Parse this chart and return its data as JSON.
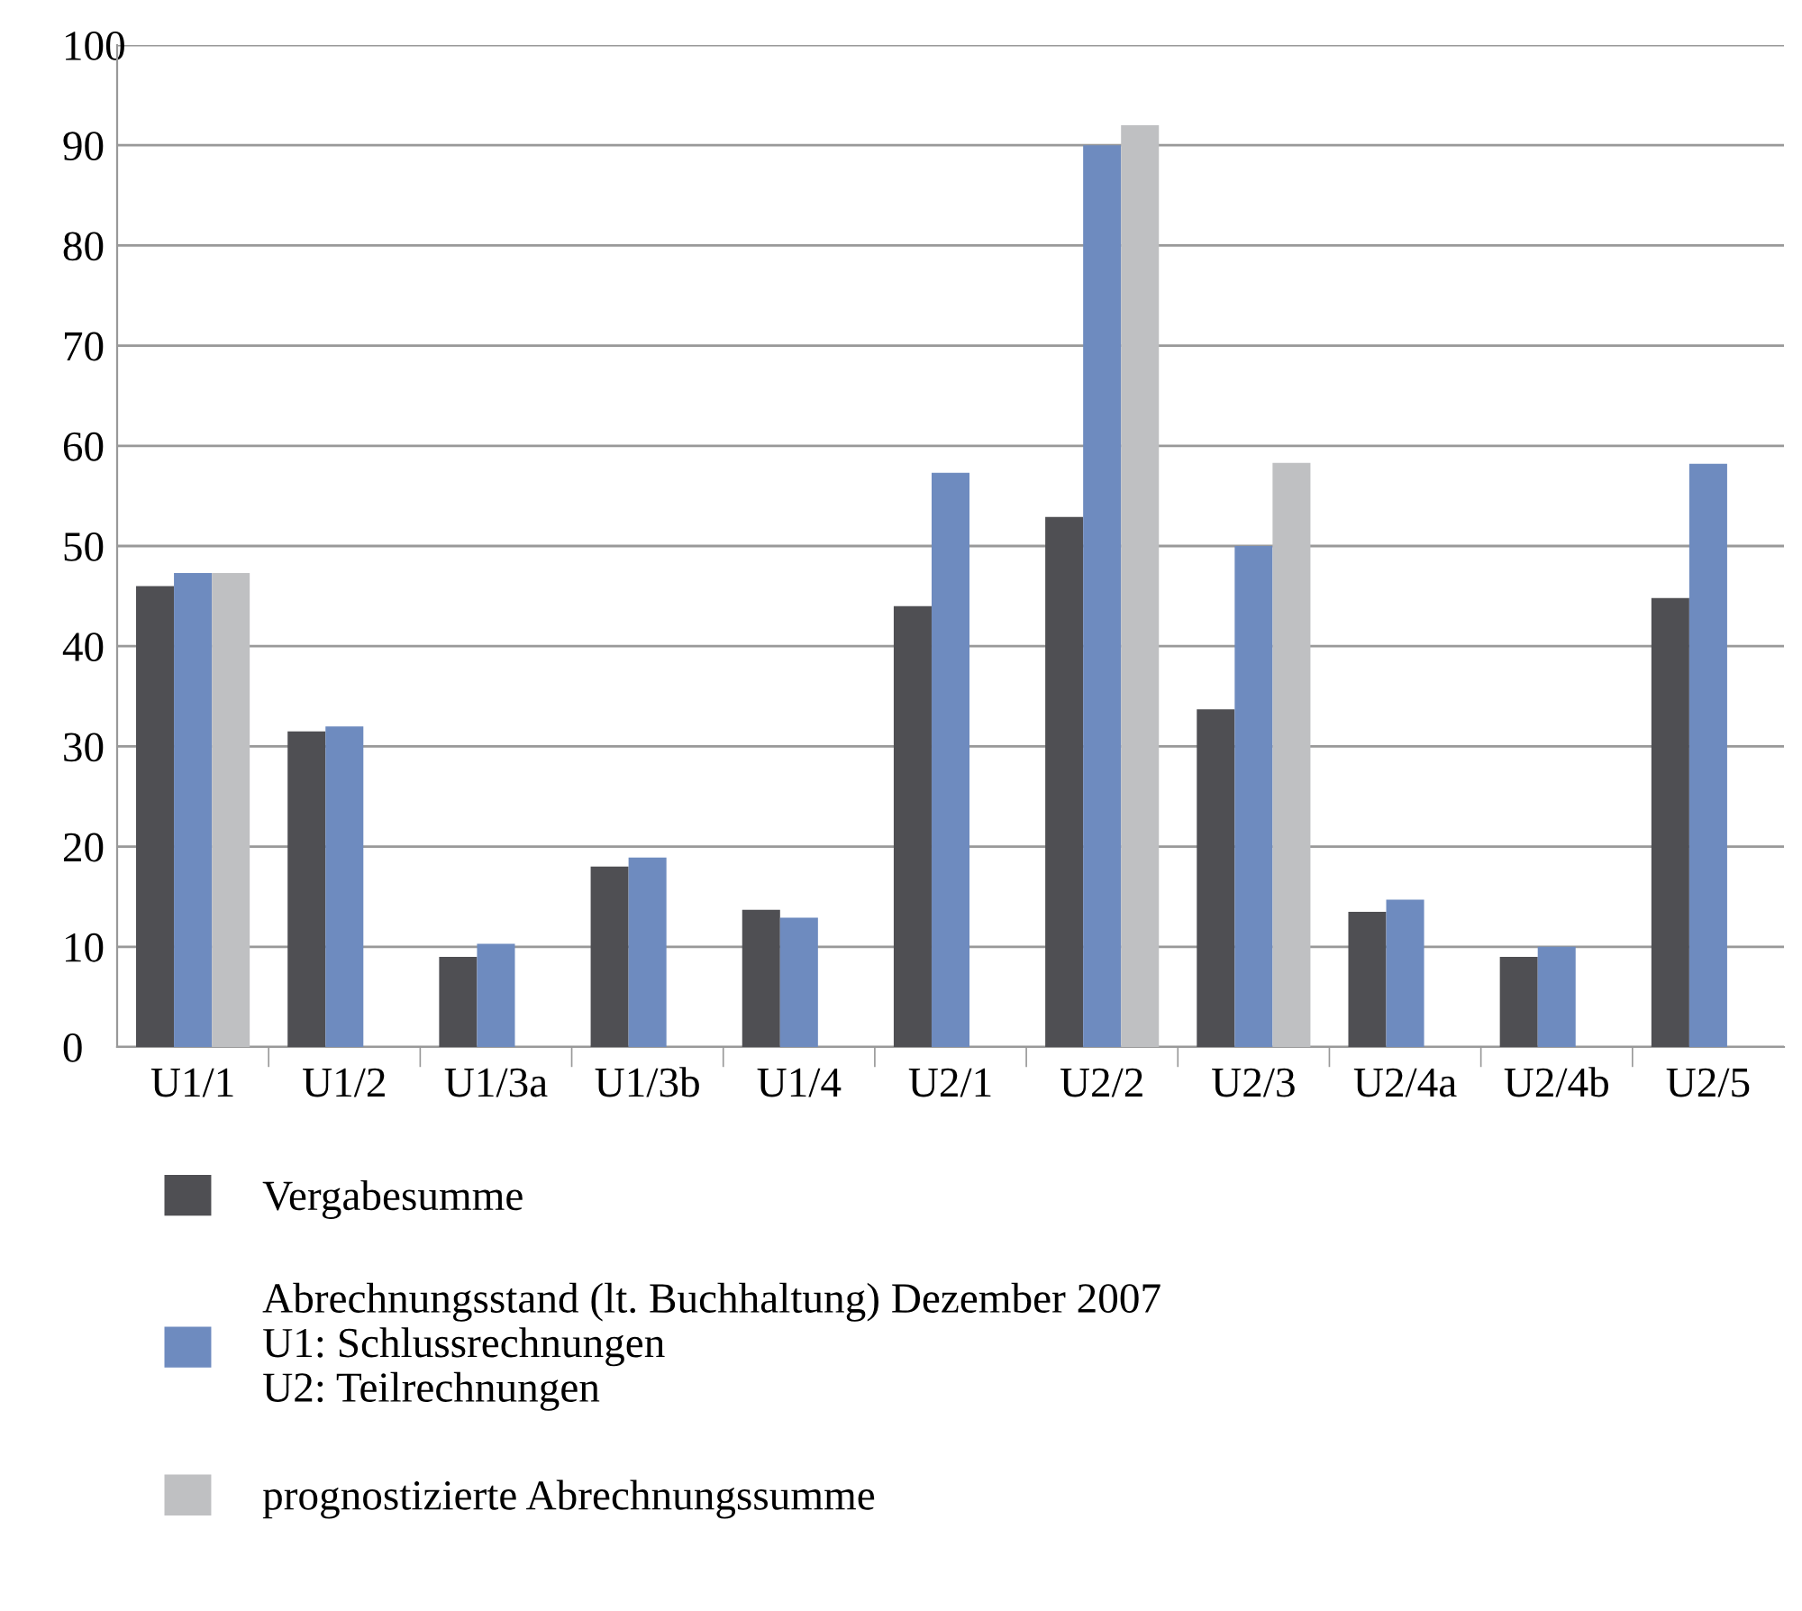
{
  "chart_data": {
    "type": "bar",
    "categories": [
      "U1/1",
      "U1/2",
      "U1/3a",
      "U1/3b",
      "U1/4",
      "U2/1",
      "U2/2",
      "U2/3",
      "U2/4a",
      "U2/4b",
      "U2/5"
    ],
    "series": [
      {
        "name": "Vergabesumme",
        "color": "#4f4f53",
        "values": [
          46,
          31.5,
          9,
          18,
          13.7,
          44,
          52.9,
          33.7,
          13.5,
          9,
          44.8
        ]
      },
      {
        "name": "Abrechnungsstand (lt. Buchhaltung) Dezember 2007\nU1: Schlussrechnungen\nU2: Teilrechnungen",
        "color": "#6e8bbf",
        "values": [
          47.3,
          32,
          10.3,
          18.9,
          12.9,
          57.3,
          90,
          50,
          14.7,
          10,
          58.2
        ]
      },
      {
        "name": "prognostizierte Abrechnungssumme",
        "color": "#bfc0c2",
        "values": [
          47.3,
          null,
          null,
          null,
          null,
          null,
          92,
          58.3,
          null,
          null,
          null
        ]
      }
    ],
    "ylim": [
      0,
      100
    ],
    "yticks": [
      0,
      10,
      20,
      30,
      40,
      50,
      60,
      70,
      80,
      90,
      100
    ],
    "grid": "y",
    "legend": "bottom"
  }
}
